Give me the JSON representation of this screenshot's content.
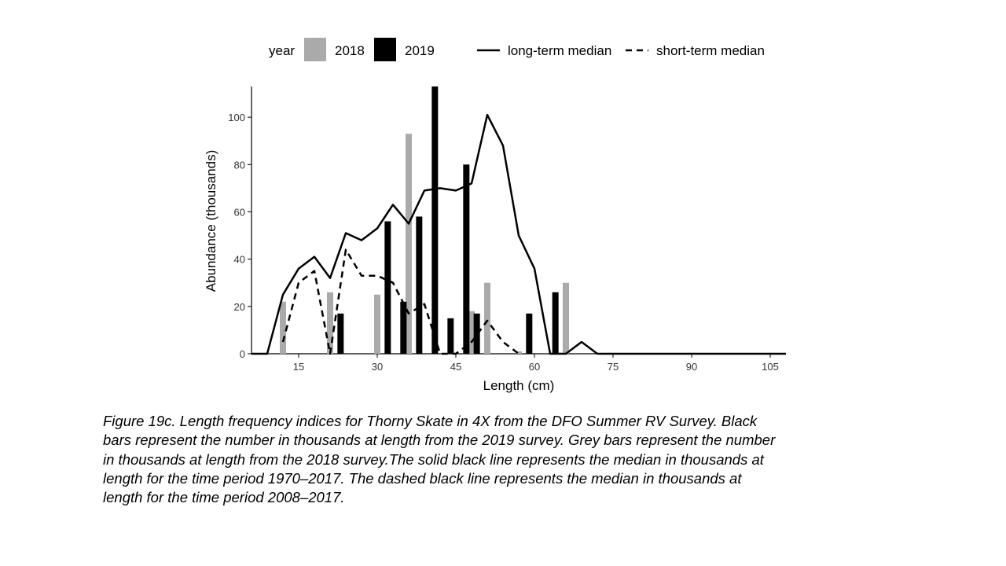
{
  "chart_data": {
    "type": "bar",
    "xlabel": "Length (cm)",
    "ylabel": "Abundance (thousands)",
    "xlim": [
      6,
      108
    ],
    "ylim": [
      0,
      113
    ],
    "xticks": [
      "15",
      "30",
      "45",
      "60",
      "75",
      "90",
      "105"
    ],
    "yticks": [
      "0",
      "20",
      "40",
      "60",
      "80",
      "100"
    ],
    "grid": false,
    "legend": {
      "position": "top",
      "title": "year",
      "bar_entries": [
        "2018",
        "2019"
      ],
      "line_entries": [
        "long-term median",
        "short-term median"
      ]
    },
    "bar_series": [
      {
        "name": "2018",
        "color": "#aaaaaa",
        "x": [
          12,
          21,
          30,
          36,
          48,
          51,
          57,
          66
        ],
        "values": [
          22,
          26,
          25,
          93,
          18,
          30,
          1,
          30
        ]
      },
      {
        "name": "2019",
        "color": "#000000",
        "x": [
          23,
          32,
          35,
          38,
          41,
          44,
          47,
          49,
          59,
          64
        ],
        "values": [
          17,
          56,
          22,
          58,
          113,
          15,
          80,
          17,
          17,
          26
        ]
      }
    ],
    "line_series": [
      {
        "name": "long-term median",
        "style": "solid",
        "x": [
          6,
          9,
          12,
          15,
          18,
          21,
          24,
          27,
          30,
          33,
          36,
          39,
          42,
          45,
          48,
          51,
          54,
          57,
          60,
          63,
          66,
          69,
          72,
          75,
          78,
          81,
          84,
          87,
          90,
          93,
          96,
          99,
          102,
          105,
          108
        ],
        "values": [
          0,
          0,
          25,
          36,
          41,
          32,
          51,
          48,
          53,
          63,
          55,
          69,
          70,
          69,
          72,
          101,
          88,
          50,
          36,
          0,
          0,
          5,
          0,
          0,
          0,
          0,
          0,
          0,
          0,
          0,
          0,
          0,
          0,
          0,
          0
        ]
      },
      {
        "name": "short-term median",
        "style": "dashed",
        "x": [
          12,
          15,
          18,
          21,
          24,
          27,
          30,
          33,
          36,
          39,
          42,
          45,
          48,
          51,
          54,
          57
        ],
        "values": [
          5,
          30,
          35,
          0,
          44,
          33,
          33,
          30,
          17,
          21,
          0,
          0,
          5,
          14,
          5,
          0
        ]
      }
    ]
  },
  "caption": {
    "lines": [
      "Figure 19c. Length frequency indices for Thorny Skate in 4X from the DFO Summer RV Survey. Black",
      "bars represent the number in thousands at length from the 2019 survey. Grey bars represent the number",
      "in thousands at length from the 2018 survey.The solid black line represents the median in thousands at",
      "length for the time period 1970–2017.  The dashed black line represents the median in thousands at",
      "length for the time period 2008–2017."
    ]
  }
}
